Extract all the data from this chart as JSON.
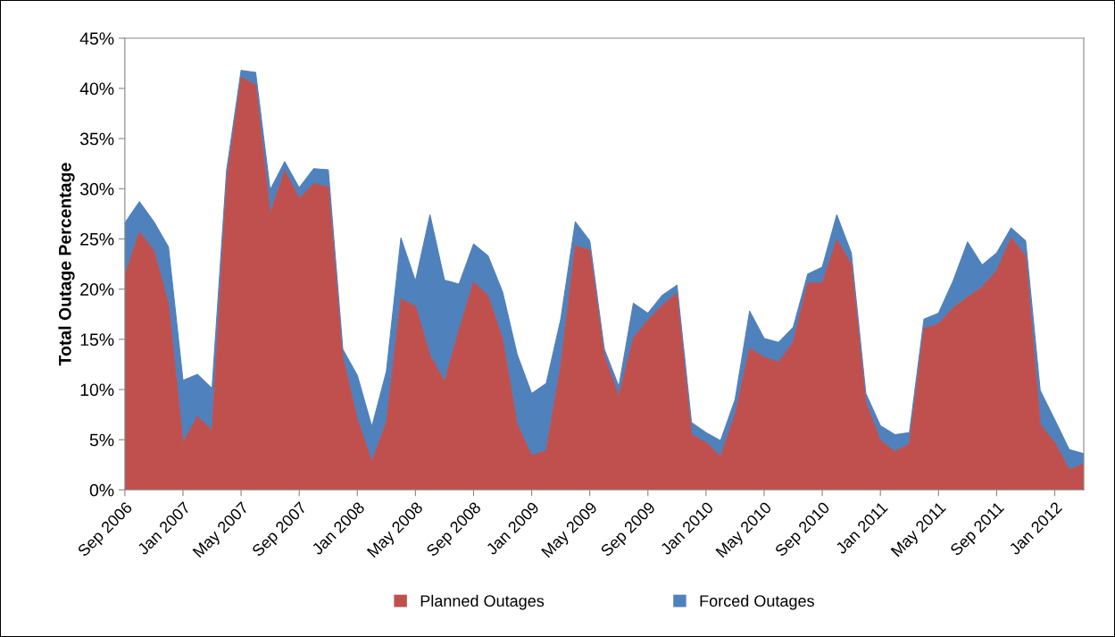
{
  "chart_data": {
    "type": "area",
    "stacked": true,
    "ylabel": "Total Outage Percentage",
    "x": [
      "2006-09",
      "2006-10",
      "2006-11",
      "2006-12",
      "2007-01",
      "2007-02",
      "2007-03",
      "2007-04",
      "2007-05",
      "2007-06",
      "2007-07",
      "2007-08",
      "2007-09",
      "2007-10",
      "2007-11",
      "2007-12",
      "2008-01",
      "2008-02",
      "2008-03",
      "2008-04",
      "2008-05",
      "2008-06",
      "2008-07",
      "2008-08",
      "2008-09",
      "2008-10",
      "2008-11",
      "2008-12",
      "2009-01",
      "2009-02",
      "2009-03",
      "2009-04",
      "2009-05",
      "2009-06",
      "2009-07",
      "2009-08",
      "2009-09",
      "2009-10",
      "2009-11",
      "2009-12",
      "2010-01",
      "2010-02",
      "2010-03",
      "2010-04",
      "2010-05",
      "2010-06",
      "2010-07",
      "2010-08",
      "2010-09",
      "2010-10",
      "2010-11",
      "2010-12",
      "2011-01",
      "2011-02",
      "2011-03",
      "2011-04",
      "2011-05",
      "2011-06",
      "2011-07",
      "2011-08",
      "2011-09",
      "2011-10",
      "2011-11",
      "2011-12",
      "2012-01",
      "2012-02",
      "2012-03"
    ],
    "series": [
      {
        "name": "Planned Outages",
        "color": "#c0504d",
        "values": [
          21.3,
          25.7,
          23.8,
          18.5,
          4.7,
          7.3,
          5.9,
          30.7,
          41.1,
          40.3,
          27.5,
          31.8,
          29.0,
          30.5,
          30.2,
          13.2,
          7.0,
          2.8,
          6.7,
          19.0,
          18.3,
          13.4,
          10.8,
          15.9,
          20.7,
          19.3,
          15.0,
          6.5,
          3.4,
          3.9,
          12.3,
          24.3,
          23.9,
          13.3,
          9.3,
          15.1,
          16.9,
          18.4,
          19.6,
          5.5,
          4.7,
          3.3,
          7.5,
          14.1,
          13.2,
          12.7,
          14.7,
          20.6,
          20.6,
          24.9,
          22.5,
          8.7,
          4.9,
          3.8,
          4.6,
          16.1,
          16.5,
          18.1,
          19.2,
          20.2,
          21.8,
          25.1,
          23.3,
          6.5,
          4.7,
          2.0,
          2.6
        ]
      },
      {
        "name": "Forced Outages",
        "color": "#4f81bd",
        "values": [
          5.3,
          3.0,
          2.9,
          5.7,
          6.2,
          4.2,
          4.2,
          1.1,
          0.7,
          1.3,
          2.4,
          0.9,
          1.1,
          1.5,
          1.7,
          0.8,
          4.4,
          3.5,
          5.1,
          6.1,
          2.5,
          14.0,
          10.1,
          4.6,
          3.8,
          4.0,
          4.7,
          7.0,
          6.2,
          6.7,
          4.7,
          2.4,
          0.9,
          0.7,
          1.0,
          3.5,
          0.7,
          1.0,
          0.8,
          1.2,
          1.0,
          1.6,
          1.5,
          3.7,
          1.9,
          2.0,
          1.5,
          0.9,
          1.6,
          2.5,
          1.1,
          0.9,
          1.5,
          1.7,
          1.1,
          0.9,
          1.1,
          2.7,
          5.5,
          2.2,
          1.8,
          1.0,
          1.5,
          3.4,
          2.3,
          2.0,
          1.0
        ]
      }
    ],
    "xlim": [
      "2006-09",
      "2012-03"
    ],
    "xticks": [
      {
        "value": "2006-09",
        "label": "Sep 2006"
      },
      {
        "value": "2007-01",
        "label": "Jan 2007"
      },
      {
        "value": "2007-05",
        "label": "May 2007"
      },
      {
        "value": "2007-09",
        "label": "Sep 2007"
      },
      {
        "value": "2008-01",
        "label": "Jan 2008"
      },
      {
        "value": "2008-05",
        "label": "May 2008"
      },
      {
        "value": "2008-09",
        "label": "Sep 2008"
      },
      {
        "value": "2009-01",
        "label": "Jan 2009"
      },
      {
        "value": "2009-05",
        "label": "May 2009"
      },
      {
        "value": "2009-09",
        "label": "Sep 2009"
      },
      {
        "value": "2010-01",
        "label": "Jan 2010"
      },
      {
        "value": "2010-05",
        "label": "May 2010"
      },
      {
        "value": "2010-09",
        "label": "Sep 2010"
      },
      {
        "value": "2011-01",
        "label": "Jan 2011"
      },
      {
        "value": "2011-05",
        "label": "May 2011"
      },
      {
        "value": "2011-09",
        "label": "Sep 2011"
      },
      {
        "value": "2012-01",
        "label": "Jan 2012"
      }
    ],
    "ylim": [
      0,
      45
    ],
    "yticks": [
      {
        "value": 0,
        "label": "0%"
      },
      {
        "value": 5,
        "label": "5%"
      },
      {
        "value": 10,
        "label": "10%"
      },
      {
        "value": 15,
        "label": "15%"
      },
      {
        "value": 20,
        "label": "20%"
      },
      {
        "value": 25,
        "label": "25%"
      },
      {
        "value": 30,
        "label": "30%"
      },
      {
        "value": 35,
        "label": "35%"
      },
      {
        "value": 40,
        "label": "40%"
      },
      {
        "value": 45,
        "label": "45%"
      }
    ],
    "grid": false,
    "legend": "bottom"
  }
}
